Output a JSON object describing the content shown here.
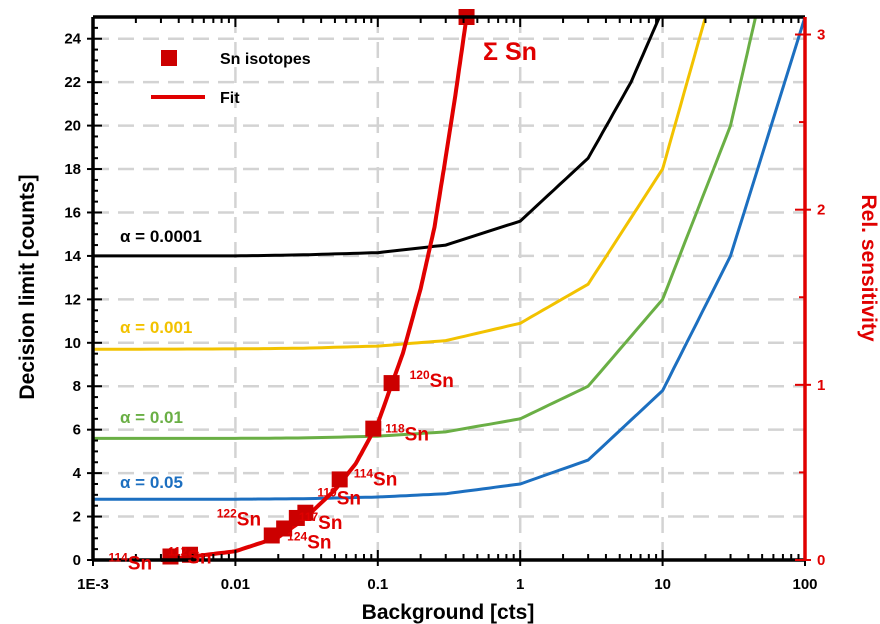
{
  "chart_data": {
    "type": "line",
    "title": "",
    "xlabel": "Background [cts]",
    "ylabel": "Decision limit [counts]",
    "y2label": "Rel. sensitivity",
    "xscale": "log",
    "xlim": [
      0.001,
      100
    ],
    "ylim": [
      0,
      25
    ],
    "y2lim": [
      0,
      3.1
    ],
    "grid": true,
    "legend_position": "top-left",
    "x_tick_labels": [
      "1E-3",
      "0.01",
      "0.1",
      "1",
      "10",
      "100"
    ],
    "x_tick_values": [
      0.001,
      0.01,
      0.1,
      1,
      10,
      100
    ],
    "y_tick_labels": [
      "0",
      "2",
      "4",
      "6",
      "8",
      "10",
      "12",
      "14",
      "16",
      "18",
      "20",
      "22",
      "24"
    ],
    "y_tick_values": [
      0,
      2,
      4,
      6,
      8,
      10,
      12,
      14,
      16,
      18,
      20,
      22,
      24
    ],
    "y2_tick_labels": [
      "0",
      "1",
      "2",
      "3"
    ],
    "y2_tick_values": [
      0,
      1,
      2,
      3
    ],
    "legend": [
      {
        "label": "Sn isotopes",
        "marker": "square",
        "color": "#cc0000"
      },
      {
        "label": "Fit",
        "marker": "line",
        "color": "#e00000"
      }
    ],
    "total_label": "Σ Sn",
    "series": [
      {
        "name": "α = 0.0001",
        "color": "#000000",
        "x": [
          0.001,
          0.01,
          0.03,
          0.1,
          0.3,
          1,
          3,
          6,
          9.5
        ],
        "y": [
          14.0,
          14.0,
          14.05,
          14.15,
          14.5,
          15.6,
          18.5,
          22.0,
          25.0
        ]
      },
      {
        "name": "α = 0.001",
        "color": "#f2c200",
        "x": [
          0.001,
          0.01,
          0.03,
          0.1,
          0.3,
          1,
          3,
          10,
          20
        ],
        "y": [
          9.7,
          9.72,
          9.75,
          9.85,
          10.1,
          10.9,
          12.7,
          18.0,
          25.0
        ]
      },
      {
        "name": "α = 0.01",
        "color": "#6aaf45",
        "x": [
          0.001,
          0.01,
          0.03,
          0.1,
          0.3,
          1,
          3,
          10,
          30,
          45
        ],
        "y": [
          5.6,
          5.6,
          5.62,
          5.7,
          5.9,
          6.5,
          8.0,
          12.0,
          20.0,
          25.0
        ]
      },
      {
        "name": "α = 0.05",
        "color": "#1c6fc0",
        "x": [
          0.001,
          0.01,
          0.03,
          0.1,
          0.3,
          1,
          3,
          10,
          30,
          100
        ],
        "y": [
          2.8,
          2.8,
          2.82,
          2.9,
          3.05,
          3.5,
          4.6,
          7.8,
          14.0,
          25.0
        ]
      }
    ],
    "fit": {
      "name": "Fit",
      "color": "#e00000",
      "axis": "y2",
      "x": [
        0.003,
        0.005,
        0.01,
        0.02,
        0.03,
        0.05,
        0.07,
        0.1,
        0.15,
        0.2,
        0.25,
        0.3,
        0.35,
        0.42
      ],
      "y": [
        0.0,
        0.02,
        0.05,
        0.13,
        0.23,
        0.4,
        0.55,
        0.78,
        1.18,
        1.55,
        1.9,
        2.3,
        2.65,
        3.1
      ]
    },
    "isotopes": {
      "axis": "y2",
      "color": "#cc0000",
      "points": [
        {
          "label": "Sn",
          "isotope": "114",
          "x": 0.0035,
          "y": 0.02
        },
        {
          "label": "Sn",
          "isotope": "112",
          "x": 0.0048,
          "y": 0.03
        },
        {
          "label": "Sn",
          "isotope": "122",
          "x": 0.018,
          "y": 0.14
        },
        {
          "label": "Sn",
          "isotope": "124",
          "x": 0.022,
          "y": 0.18
        },
        {
          "label": "Sn",
          "isotope": "117",
          "x": 0.027,
          "y": 0.24
        },
        {
          "label": "Sn",
          "isotope": "119",
          "x": 0.031,
          "y": 0.27
        },
        {
          "label": "Sn",
          "isotope": "114",
          "x": 0.054,
          "y": 0.46
        },
        {
          "label": "Sn",
          "isotope": "118",
          "x": 0.093,
          "y": 0.75
        },
        {
          "label": "Sn",
          "isotope": "120",
          "x": 0.125,
          "y": 1.01
        },
        {
          "label": "",
          "isotope": "",
          "x": 0.42,
          "y": 3.1
        }
      ]
    }
  }
}
